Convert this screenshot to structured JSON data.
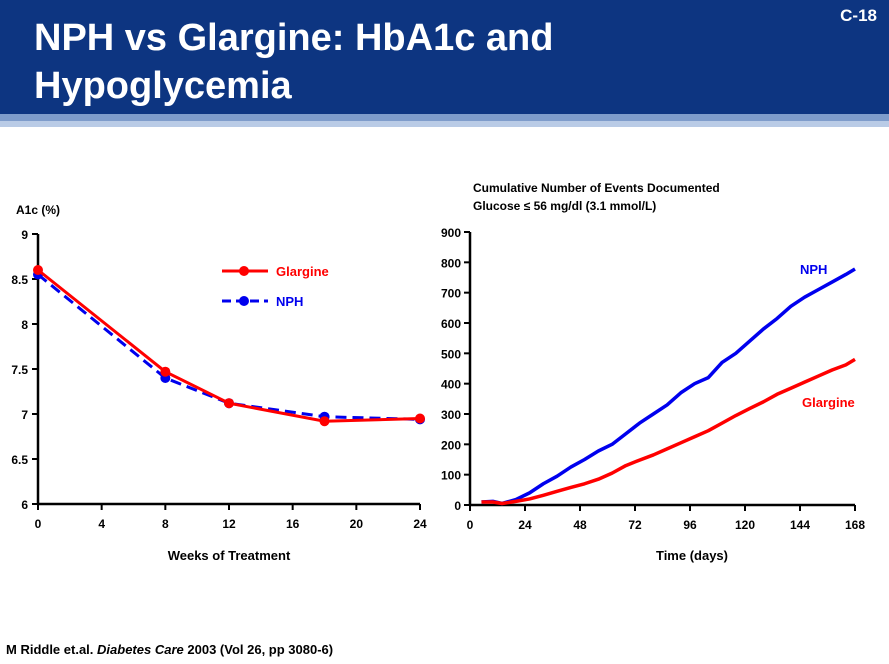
{
  "header": {
    "title_line1": "NPH vs Glargine: HbA1c and",
    "title_line2": "Hypoglycemia",
    "slide_number": "C-18"
  },
  "footer": {
    "authors": "M Riddle et.al.",
    "journal": "Diabetes Care",
    "details": "2003 (Vol 26, pp 3080-6)"
  },
  "colors": {
    "header_bg": "#0d3581",
    "glargine": "#ff0000",
    "nph": "#0000ee"
  },
  "chart_data": [
    {
      "type": "line",
      "ylabel": "A1c (%)",
      "xlabel": "Weeks of Treatment",
      "xlim": [
        0,
        24
      ],
      "ylim": [
        6,
        9
      ],
      "x_ticks": [
        "0",
        "4",
        "8",
        "12",
        "16",
        "20",
        "24"
      ],
      "y_ticks": [
        "6",
        "6.5",
        "7",
        "7.5",
        "8",
        "8.5",
        "9"
      ],
      "grid": false,
      "legend_position": "top-right",
      "series": [
        {
          "name": "Glargine",
          "style": "solid",
          "x": [
            0,
            8,
            12,
            18,
            24
          ],
          "values": [
            8.6,
            7.47,
            7.12,
            6.92,
            6.95
          ]
        },
        {
          "name": "NPH",
          "style": "dashed",
          "x": [
            0,
            8,
            12,
            18,
            24
          ],
          "values": [
            8.55,
            7.4,
            7.12,
            6.97,
            6.94
          ]
        }
      ]
    },
    {
      "type": "line",
      "title_line1": "Cumulative Number of Events Documented",
      "title_line2": "Glucose ≤ 56 mg/dl (3.1 mmol/L)",
      "xlabel": "Time (days)",
      "xlim": [
        0,
        168
      ],
      "ylim": [
        0,
        900
      ],
      "x_ticks": [
        "0",
        "24",
        "48",
        "72",
        "96",
        "120",
        "144",
        "168"
      ],
      "y_ticks": [
        "0",
        "100",
        "200",
        "300",
        "400",
        "500",
        "600",
        "700",
        "800",
        "900"
      ],
      "grid": false,
      "series": [
        {
          "name": "NPH",
          "x": [
            5,
            10,
            14,
            20,
            26,
            32,
            38,
            44,
            50,
            56,
            62,
            68,
            74,
            80,
            86,
            92,
            98,
            104,
            110,
            116,
            122,
            128,
            134,
            140,
            146,
            152,
            158,
            164,
            168
          ],
          "values": [
            10,
            12,
            5,
            18,
            40,
            70,
            95,
            125,
            150,
            178,
            200,
            235,
            270,
            300,
            330,
            370,
            400,
            420,
            470,
            500,
            540,
            580,
            615,
            655,
            685,
            710,
            735,
            760,
            778
          ]
        },
        {
          "name": "Glargine",
          "x": [
            5,
            10,
            14,
            20,
            26,
            32,
            38,
            44,
            50,
            56,
            62,
            68,
            74,
            80,
            86,
            92,
            98,
            104,
            110,
            116,
            122,
            128,
            134,
            140,
            146,
            152,
            158,
            164,
            168
          ],
          "values": [
            10,
            10,
            5,
            12,
            20,
            32,
            45,
            58,
            70,
            85,
            105,
            130,
            148,
            165,
            185,
            205,
            225,
            245,
            270,
            295,
            318,
            340,
            365,
            385,
            405,
            425,
            445,
            462,
            480
          ]
        }
      ]
    }
  ]
}
